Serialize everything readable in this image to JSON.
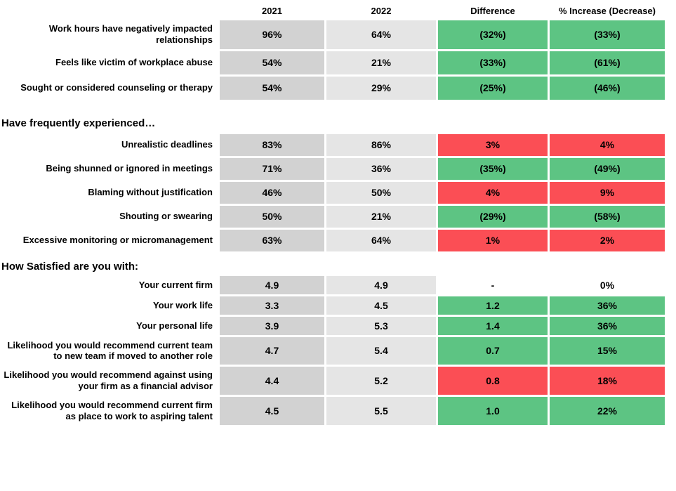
{
  "colors": {
    "green": "#5dc483",
    "red": "#fb4e55",
    "gray_2021": "#d2d2d2",
    "gray_2022": "#e5e5e5"
  },
  "chart_data": {
    "type": "table",
    "columns": [
      "2021",
      "2022",
      "Difference",
      "% Increase (Decrease)"
    ],
    "legend_note": "green = decrease (improvement), red = increase",
    "sections": [
      {
        "title": "",
        "rows": [
          {
            "label": "Work hours have negatively impacted relationships",
            "v2021": "96%",
            "v2022": "64%",
            "diff": "(32%)",
            "incr": "(33%)",
            "style": "green"
          },
          {
            "label": "Feels like victim of workplace abuse",
            "v2021": "54%",
            "v2022": "21%",
            "diff": "(33%)",
            "incr": "(61%)",
            "style": "green"
          },
          {
            "label": "Sought or considered counseling or therapy",
            "v2021": "54%",
            "v2022": "29%",
            "diff": "(25%)",
            "incr": "(46%)",
            "style": "green"
          }
        ]
      },
      {
        "title": "Have frequently experienced…",
        "rows": [
          {
            "label": "Unrealistic deadlines",
            "v2021": "83%",
            "v2022": "86%",
            "diff": "3%",
            "incr": "4%",
            "style": "red"
          },
          {
            "label": "Being shunned or ignored in meetings",
            "v2021": "71%",
            "v2022": "36%",
            "diff": "(35%)",
            "incr": "(49%)",
            "style": "green"
          },
          {
            "label": "Blaming without justification",
            "v2021": "46%",
            "v2022": "50%",
            "diff": "4%",
            "incr": "9%",
            "style": "red"
          },
          {
            "label": "Shouting or swearing",
            "v2021": "50%",
            "v2022": "21%",
            "diff": "(29%)",
            "incr": "(58%)",
            "style": "green"
          },
          {
            "label": "Excessive monitoring or micromanagement",
            "v2021": "63%",
            "v2022": "64%",
            "diff": "1%",
            "incr": "2%",
            "style": "red"
          }
        ]
      },
      {
        "title": "How Satisfied are you with:",
        "rows": [
          {
            "label": "Your current firm",
            "v2021": "4.9",
            "v2022": "4.9",
            "diff": "-",
            "incr": "0%",
            "style": "plain"
          },
          {
            "label": "Your work life",
            "v2021": "3.3",
            "v2022": "4.5",
            "diff": "1.2",
            "incr": "36%",
            "style": "green"
          },
          {
            "label": "Your personal life",
            "v2021": "3.9",
            "v2022": "5.3",
            "diff": "1.4",
            "incr": "36%",
            "style": "green"
          },
          {
            "label": "Likelihood you would recommend current team to new team if moved to another role",
            "v2021": "4.7",
            "v2022": "5.4",
            "diff": "0.7",
            "incr": "15%",
            "style": "green"
          },
          {
            "label": "Likelihood you would recommend against using your firm as a financial advisor",
            "v2021": "4.4",
            "v2022": "5.2",
            "diff": "0.8",
            "incr": "18%",
            "style": "red"
          },
          {
            "label": "Likelihood you would recommend current firm as place to work to aspiring talent",
            "v2021": "4.5",
            "v2022": "5.5",
            "diff": "1.0",
            "incr": "22%",
            "style": "green"
          }
        ]
      }
    ]
  }
}
